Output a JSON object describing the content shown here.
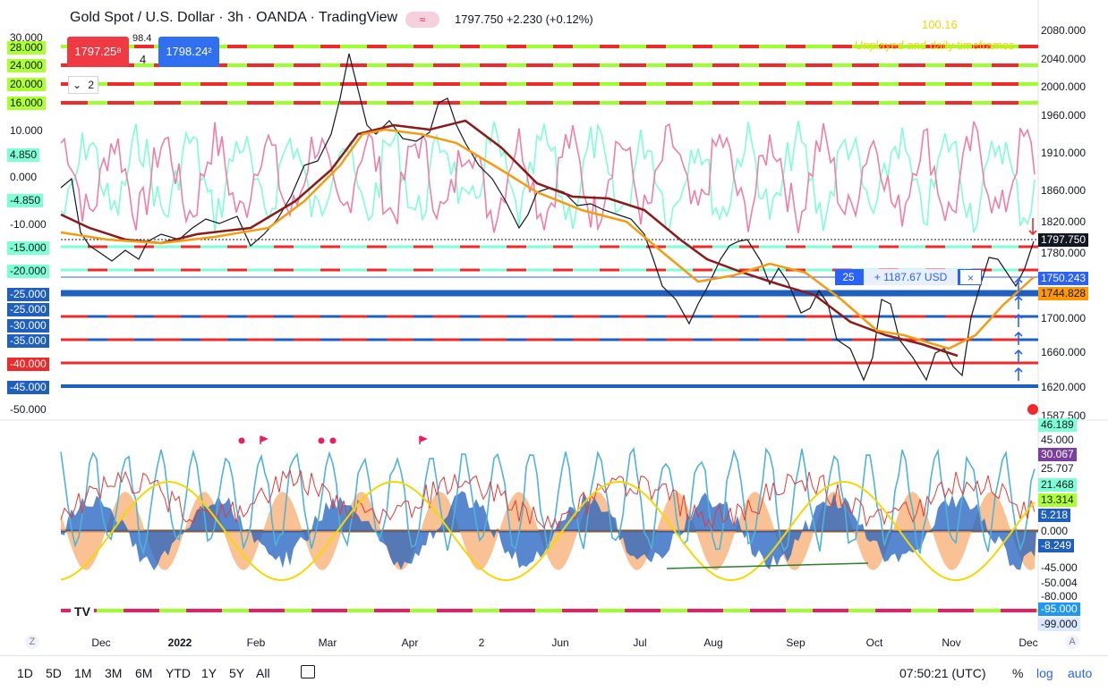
{
  "header": {
    "title": "Gold Spot / U.S. Dollar · 3h · OANDA · TradingView",
    "badge": "≈",
    "quote": "1797.750  +2.230 (+0.12%)"
  },
  "trade": {
    "sell_price": "1797.25⁸",
    "buy_price": "1798.24²",
    "spread_top": "98.4",
    "spread_bottom": "4",
    "lot_value": "2"
  },
  "overlay": {
    "value_yellow": "100.16",
    "note_yellow": "Unplayed and daily timeframes"
  },
  "position": {
    "qty": "25",
    "pl": "+ 1187.67 USD",
    "close": "×"
  },
  "left_scale": [
    {
      "text": "30.000",
      "color": "#131722",
      "bg": "none"
    },
    {
      "text": "28.000",
      "color": "#131722",
      "bg": "#adff2f"
    },
    {
      "text": "24.000",
      "color": "#131722",
      "bg": "#adff2f"
    },
    {
      "text": "20.000",
      "color": "#131722",
      "bg": "#adff2f"
    },
    {
      "text": "16.000",
      "color": "#131722",
      "bg": "#adff2f"
    },
    {
      "text": "10.000",
      "color": "#131722",
      "bg": "none"
    },
    {
      "text": "4.850",
      "color": "#131722",
      "bg": "#7fffd4"
    },
    {
      "text": "0.000",
      "color": "#131722",
      "bg": "none"
    },
    {
      "text": "-4.850",
      "color": "#131722",
      "bg": "#7fffd4"
    },
    {
      "text": "-10.000",
      "color": "#131722",
      "bg": "none"
    },
    {
      "text": "-15.000",
      "color": "#131722",
      "bg": "#7fffd4"
    },
    {
      "text": "-20.000",
      "color": "#131722",
      "bg": "#7fffd4"
    },
    {
      "text": "-25.000",
      "color": "#ffffff",
      "bg": "#1f5fbf"
    },
    {
      "text": "-25.000",
      "color": "#ffffff",
      "bg": "#1f5fbf"
    },
    {
      "text": "-30.000",
      "color": "#ffffff",
      "bg": "#1f5fbf"
    },
    {
      "text": "-35.000",
      "color": "#ffffff",
      "bg": "#1f5fbf"
    },
    {
      "text": "-40.000",
      "color": "#ffffff",
      "bg": "#ef2a2a"
    },
    {
      "text": "-45.000",
      "color": "#ffffff",
      "bg": "#1f5fbf"
    },
    {
      "text": "-50.000",
      "color": "#131722",
      "bg": "none"
    }
  ],
  "right_scale": [
    {
      "text": "2080.000",
      "color": "#131722",
      "bg": "none"
    },
    {
      "text": "2040.000",
      "color": "#131722",
      "bg": "none"
    },
    {
      "text": "2000.000",
      "color": "#131722",
      "bg": "none"
    },
    {
      "text": "1960.000",
      "color": "#131722",
      "bg": "none"
    },
    {
      "text": "1910.000",
      "color": "#131722",
      "bg": "none"
    },
    {
      "text": "1860.000",
      "color": "#131722",
      "bg": "none"
    },
    {
      "text": "1820.000",
      "color": "#131722",
      "bg": "none"
    },
    {
      "text": "1797.750",
      "color": "#ffffff",
      "bg": "#131722"
    },
    {
      "text": "1780.000",
      "color": "#131722",
      "bg": "none"
    },
    {
      "text": "1750.243",
      "color": "#ffffff",
      "bg": "#2962ff"
    },
    {
      "text": "1744.828",
      "color": "#131722",
      "bg": "#ff9800"
    },
    {
      "text": "1700.000",
      "color": "#131722",
      "bg": "none"
    },
    {
      "text": "1660.000",
      "color": "#131722",
      "bg": "none"
    },
    {
      "text": "1620.000",
      "color": "#131722",
      "bg": "none"
    },
    {
      "text": "1587.500",
      "color": "#131722",
      "bg": "none"
    }
  ],
  "osc_scale": [
    {
      "text": "46.189",
      "color": "#131722",
      "bg": "#7fffd4"
    },
    {
      "text": "45.000",
      "color": "#131722",
      "bg": "none"
    },
    {
      "text": "30.067",
      "color": "#ffffff",
      "bg": "#7b3fa0"
    },
    {
      "text": "25.707",
      "color": "#131722",
      "bg": "none"
    },
    {
      "text": "21.468",
      "color": "#131722",
      "bg": "#7fffd4"
    },
    {
      "text": "13.314",
      "color": "#131722",
      "bg": "#adff2f"
    },
    {
      "text": "5.218",
      "color": "#ffffff",
      "bg": "#1f5fbf"
    },
    {
      "text": "0.000",
      "color": "#131722",
      "bg": "none"
    },
    {
      "text": "-8.249",
      "color": "#ffffff",
      "bg": "#1f5fbf"
    },
    {
      "text": "-45.000",
      "color": "#131722",
      "bg": "none"
    },
    {
      "text": "-50.004",
      "color": "#131722",
      "bg": "none"
    },
    {
      "text": "-80.000",
      "color": "#131722",
      "bg": "none"
    },
    {
      "text": "-95.000",
      "color": "#ffffff",
      "bg": "#2196f3"
    },
    {
      "text": "-99.000",
      "color": "#131722",
      "bg": "#dbe9ff"
    }
  ],
  "x_axis": [
    "Dec",
    "2022",
    "Feb",
    "Mar",
    "Apr",
    "2",
    "Jun",
    "Jul",
    "Aug",
    "Sep",
    "Oct",
    "Nov",
    "Dec"
  ],
  "ranges": [
    "1D",
    "5D",
    "1M",
    "3M",
    "6M",
    "YTD",
    "1Y",
    "5Y",
    "All"
  ],
  "clock": "07:50:21 (UTC)",
  "scale_opts": {
    "pct": "%",
    "log": "log",
    "auto": "auto"
  },
  "corners": {
    "left": "Z",
    "right": "A"
  },
  "logo": "TV",
  "colors": {
    "red": "#ef2a2a",
    "green": "#9cff2e",
    "blue": "#1f5fbf",
    "teal": "#7fffd4",
    "pink": "#ef7fa8",
    "orange": "#f39c12",
    "maroon": "#8b1a1a"
  }
}
